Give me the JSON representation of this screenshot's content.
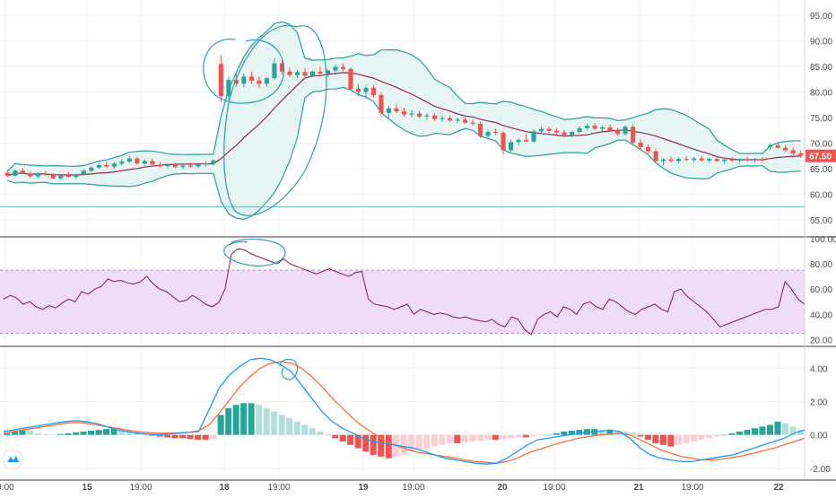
{
  "chart_data": [
    {
      "type": "candlestick",
      "panel": "price",
      "indicators": [
        "bollinger-bands",
        "moving-average"
      ],
      "y_ticks": [
        "95.00",
        "90.00",
        "85.00",
        "80.00",
        "75.00",
        "70.00",
        "65.00",
        "60.00",
        "55.00"
      ],
      "ylim": [
        52,
        98
      ],
      "last_price": "67.50",
      "horizontal_line": 57.5,
      "candles": [
        [
          64.2,
          64.8,
          63.4,
          63.6
        ],
        [
          63.6,
          64.9,
          63.5,
          64.6
        ],
        [
          64.6,
          65.1,
          63.9,
          64.0
        ],
        [
          64.0,
          64.5,
          63.2,
          63.5
        ],
        [
          63.5,
          64.3,
          63.1,
          64.1
        ],
        [
          64.1,
          64.6,
          63.6,
          63.8
        ],
        [
          63.8,
          64.1,
          62.9,
          63.1
        ],
        [
          63.1,
          63.9,
          62.8,
          63.7
        ],
        [
          63.7,
          64.4,
          63.3,
          63.4
        ],
        [
          63.4,
          64.0,
          63.0,
          63.8
        ],
        [
          63.8,
          64.9,
          63.7,
          64.6
        ],
        [
          64.6,
          65.5,
          64.2,
          65.2
        ],
        [
          65.2,
          66.0,
          64.9,
          65.7
        ],
        [
          65.7,
          66.4,
          65.1,
          65.4
        ],
        [
          65.4,
          66.2,
          65.0,
          66.0
        ],
        [
          66.0,
          66.8,
          65.6,
          66.4
        ],
        [
          66.4,
          67.4,
          66.1,
          67.0
        ],
        [
          67.0,
          67.3,
          65.8,
          66.0
        ],
        [
          66.0,
          66.8,
          65.5,
          66.5
        ],
        [
          66.5,
          67.0,
          65.6,
          65.8
        ],
        [
          65.8,
          66.3,
          65.2,
          65.5
        ],
        [
          65.5,
          66.0,
          65.0,
          65.7
        ],
        [
          65.7,
          66.1,
          65.1,
          65.3
        ],
        [
          65.3,
          65.9,
          64.9,
          65.6
        ],
        [
          65.6,
          66.2,
          65.2,
          65.4
        ],
        [
          65.4,
          66.0,
          65.1,
          65.8
        ],
        [
          65.8,
          66.4,
          65.4,
          66.0
        ],
        [
          66.0,
          66.8,
          65.6,
          66.6
        ],
        [
          85.5,
          87.2,
          78.0,
          79.2
        ],
        [
          79.2,
          83.0,
          78.5,
          82.4
        ],
        [
          82.4,
          84.1,
          81.0,
          81.6
        ],
        [
          81.6,
          83.6,
          80.9,
          83.0
        ],
        [
          83.0,
          84.0,
          81.6,
          82.2
        ],
        [
          82.2,
          83.1,
          80.8,
          81.6
        ],
        [
          81.6,
          82.9,
          81.0,
          82.7
        ],
        [
          82.7,
          86.6,
          82.4,
          85.6
        ],
        [
          85.6,
          86.2,
          83.4,
          84.0
        ],
        [
          84.0,
          84.8,
          82.9,
          83.3
        ],
        [
          83.3,
          84.3,
          82.8,
          83.9
        ],
        [
          83.9,
          84.6,
          83.0,
          83.2
        ],
        [
          83.2,
          84.2,
          82.9,
          84.0
        ],
        [
          84.0,
          84.9,
          83.3,
          83.6
        ],
        [
          83.6,
          84.5,
          83.1,
          84.2
        ],
        [
          84.2,
          85.4,
          83.6,
          84.9
        ],
        [
          84.9,
          85.6,
          84.1,
          84.5
        ],
        [
          84.5,
          84.8,
          80.2,
          80.6
        ],
        [
          80.6,
          81.6,
          79.2,
          80.0
        ],
        [
          80.0,
          81.3,
          78.6,
          80.8
        ],
        [
          80.8,
          81.4,
          78.9,
          79.4
        ],
        [
          79.4,
          79.9,
          75.2,
          75.9
        ],
        [
          75.9,
          77.3,
          74.9,
          76.8
        ],
        [
          76.8,
          77.6,
          75.9,
          76.2
        ],
        [
          76.2,
          76.9,
          75.2,
          75.6
        ],
        [
          75.6,
          76.4,
          75.0,
          75.8
        ],
        [
          75.8,
          76.3,
          74.9,
          75.2
        ],
        [
          75.2,
          75.9,
          74.6,
          75.4
        ],
        [
          75.4,
          75.8,
          74.4,
          74.7
        ],
        [
          74.7,
          75.3,
          74.1,
          74.9
        ],
        [
          74.9,
          75.4,
          74.2,
          74.4
        ],
        [
          74.4,
          75.0,
          73.9,
          74.6
        ],
        [
          74.6,
          75.1,
          73.8,
          74.0
        ],
        [
          74.0,
          74.6,
          73.4,
          73.8
        ],
        [
          73.8,
          74.2,
          71.0,
          71.4
        ],
        [
          71.4,
          72.6,
          70.8,
          72.2
        ],
        [
          72.2,
          72.8,
          71.6,
          72.0
        ],
        [
          72.0,
          72.4,
          67.8,
          68.6
        ],
        [
          68.6,
          70.6,
          68.2,
          70.2
        ],
        [
          70.2,
          71.0,
          69.6,
          70.6
        ],
        [
          70.6,
          71.8,
          70.2,
          70.3
        ],
        [
          70.3,
          72.7,
          70.0,
          72.3
        ],
        [
          72.3,
          73.2,
          71.8,
          72.8
        ],
        [
          72.8,
          73.3,
          72.0,
          72.4
        ],
        [
          72.4,
          72.9,
          71.8,
          72.1
        ],
        [
          72.1,
          72.6,
          71.2,
          71.6
        ],
        [
          71.6,
          72.4,
          71.2,
          72.2
        ],
        [
          72.2,
          73.3,
          71.9,
          72.9
        ],
        [
          72.9,
          73.8,
          72.5,
          73.4
        ],
        [
          73.4,
          73.9,
          72.6,
          72.8
        ],
        [
          72.8,
          73.4,
          72.3,
          73.1
        ],
        [
          73.1,
          73.6,
          72.2,
          72.5
        ],
        [
          72.5,
          73.0,
          71.4,
          71.8
        ],
        [
          71.8,
          73.5,
          71.5,
          73.2
        ],
        [
          73.2,
          73.6,
          69.6,
          70.1
        ],
        [
          70.1,
          70.8,
          68.6,
          69.2
        ],
        [
          69.2,
          69.7,
          67.9,
          68.4
        ],
        [
          68.4,
          68.9,
          66.1,
          66.5
        ],
        [
          66.5,
          67.1,
          65.6,
          66.8
        ],
        [
          66.8,
          67.4,
          66.2,
          66.5
        ],
        [
          66.5,
          67.2,
          66.1,
          66.9
        ],
        [
          66.9,
          67.5,
          66.4,
          66.7
        ],
        [
          66.7,
          67.3,
          66.2,
          67.0
        ],
        [
          67.0,
          67.5,
          66.3,
          66.6
        ],
        [
          66.6,
          67.2,
          66.1,
          66.9
        ],
        [
          66.9,
          67.4,
          66.3,
          66.5
        ],
        [
          66.5,
          67.1,
          66.0,
          66.8
        ],
        [
          66.8,
          67.3,
          66.2,
          66.6
        ],
        [
          66.6,
          67.0,
          66.1,
          66.9
        ],
        [
          66.9,
          67.4,
          66.4,
          66.7
        ],
        [
          66.7,
          67.1,
          66.2,
          66.9
        ],
        [
          66.9,
          67.3,
          66.3,
          66.6
        ],
        [
          69.2,
          70.0,
          68.6,
          69.6
        ],
        [
          69.6,
          70.2,
          68.9,
          69.1
        ],
        [
          69.1,
          69.7,
          68.2,
          68.6
        ],
        [
          68.6,
          69.1,
          67.7,
          68.0
        ],
        [
          68.0,
          68.6,
          67.1,
          67.5
        ]
      ]
    },
    {
      "type": "line",
      "panel": "rsi",
      "y_ticks": [
        "100.00",
        "80.00",
        "60.00",
        "40.00",
        "20.00"
      ],
      "ylim": [
        16,
        100
      ],
      "band": [
        25,
        75
      ],
      "values": [
        52,
        55,
        53,
        48,
        50,
        46,
        44,
        47,
        45,
        49,
        52,
        50,
        58,
        56,
        60,
        62,
        68,
        66,
        67,
        65,
        64,
        66,
        70,
        64,
        60,
        58,
        54,
        50,
        51,
        55,
        52,
        48,
        46,
        49,
        60,
        88,
        92,
        91,
        88,
        86,
        84,
        82,
        80,
        84,
        80,
        78,
        76,
        74,
        72,
        74,
        76,
        74,
        72,
        70,
        73,
        74,
        52,
        48,
        47,
        46,
        44,
        46,
        48,
        40,
        44,
        42,
        40,
        41,
        40,
        38,
        37,
        38,
        36,
        35,
        34,
        36,
        32,
        30,
        38,
        36,
        28,
        24,
        36,
        40,
        42,
        38,
        46,
        44,
        40,
        48,
        50,
        46,
        44,
        52,
        50,
        46,
        42,
        40,
        44,
        46,
        48,
        44,
        42,
        58,
        60,
        54,
        50,
        46,
        42,
        36,
        30,
        32,
        34,
        36,
        38,
        40,
        42,
        44,
        44,
        46,
        66,
        60,
        52,
        48
      ]
    },
    {
      "type": "bar+line",
      "panel": "macd",
      "y_ticks": [
        "4.00",
        "2.00",
        "0.00",
        "-2.00"
      ],
      "ylim": [
        -2.6,
        5.2
      ],
      "histogram": [
        0.1,
        0.2,
        0.3,
        0.25,
        0.1,
        0.05,
        0.0,
        0.05,
        0.1,
        0.15,
        0.2,
        0.25,
        0.3,
        0.35,
        0.4,
        0.35,
        0.3,
        0.2,
        0.05,
        -0.05,
        -0.1,
        -0.15,
        -0.2,
        -0.2,
        -0.25,
        -0.3,
        -0.3,
        -0.25,
        1.2,
        1.6,
        1.8,
        1.9,
        1.9,
        1.8,
        1.6,
        1.4,
        1.2,
        1.0,
        0.8,
        0.6,
        0.4,
        0.2,
        0.05,
        -0.2,
        -0.4,
        -0.6,
        -0.8,
        -1.0,
        -1.2,
        -1.3,
        -1.4,
        -1.3,
        -1.2,
        -1.0,
        -0.9,
        -0.8,
        -0.7,
        -0.6,
        -0.5,
        -0.5,
        -0.45,
        -0.4,
        -0.35,
        -0.3,
        -0.3,
        -0.25,
        -0.2,
        -0.15,
        -0.15,
        -0.1,
        -0.05,
        0.0,
        0.1,
        0.2,
        0.25,
        0.3,
        0.35,
        0.35,
        0.3,
        0.3,
        0.25,
        0.2,
        0.15,
        -0.1,
        -0.3,
        -0.5,
        -0.6,
        -0.7,
        -0.6,
        -0.5,
        -0.4,
        -0.3,
        -0.2,
        -0.1,
        0.0,
        0.1,
        0.2,
        0.3,
        0.4,
        0.5,
        0.6,
        0.8,
        0.7,
        0.5,
        0.3
      ],
      "macd": [
        0.2,
        0.3,
        0.4,
        0.5,
        0.6,
        0.7,
        0.8,
        0.85,
        0.8,
        0.7,
        0.5,
        0.3,
        0.2,
        0.1,
        0.05,
        0.0,
        0.05,
        0.1,
        0.15,
        0.2,
        1.5,
        2.8,
        3.6,
        4.1,
        4.5,
        4.6,
        4.5,
        4.2,
        3.8,
        3.0,
        2.2,
        1.4,
        0.8,
        0.4,
        0.1,
        -0.2,
        -0.4,
        -0.5,
        -0.6,
        -0.7,
        -0.8,
        -1.0,
        -1.2,
        -1.4,
        -1.5,
        -1.6,
        -1.7,
        -1.75,
        -1.7,
        -1.4,
        -1.0,
        -0.6,
        -0.3,
        -0.2,
        -0.1,
        0.0,
        0.1,
        0.15,
        0.2,
        0.3,
        0.2,
        -0.2,
        -0.8,
        -1.2,
        -1.4,
        -1.5,
        -1.6,
        -1.6,
        -1.5,
        -1.4,
        -1.3,
        -1.2,
        -1.0,
        -0.8,
        -0.6,
        -0.4,
        -0.2,
        0.1,
        0.3
      ],
      "signal": [
        0.1,
        0.2,
        0.3,
        0.4,
        0.5,
        0.6,
        0.7,
        0.75,
        0.7,
        0.6,
        0.5,
        0.4,
        0.3,
        0.2,
        0.15,
        0.1,
        0.1,
        0.12,
        0.15,
        0.25,
        0.6,
        1.3,
        2.1,
        2.9,
        3.5,
        4.0,
        4.3,
        4.4,
        4.3,
        4.0,
        3.5,
        2.9,
        2.2,
        1.6,
        1.0,
        0.5,
        0.1,
        -0.3,
        -0.6,
        -0.8,
        -1.0,
        -1.1,
        -1.2,
        -1.3,
        -1.4,
        -1.5,
        -1.6,
        -1.65,
        -1.7,
        -1.6,
        -1.4,
        -1.1,
        -0.9,
        -0.7,
        -0.5,
        -0.35,
        -0.2,
        -0.1,
        0.0,
        0.05,
        0.1,
        0.0,
        -0.3,
        -0.6,
        -0.9,
        -1.1,
        -1.3,
        -1.4,
        -1.5,
        -1.5,
        -1.45,
        -1.35,
        -1.25,
        -1.1,
        -0.95,
        -0.8,
        -0.6,
        -0.4,
        -0.2
      ]
    }
  ],
  "time_axis": {
    "labels": [
      "9:00",
      "15",
      "19:00",
      "18",
      "19:00",
      "19",
      "19:00",
      "20",
      "19:00",
      "21",
      "19:00",
      "22"
    ],
    "bold": [
      false,
      true,
      false,
      true,
      false,
      true,
      false,
      true,
      false,
      true,
      false,
      true
    ]
  },
  "colors": {
    "up": "#26a69a",
    "down": "#ef5350",
    "bb_fill": "#e6f4f2",
    "bb_line": "#2a9d9a",
    "ma": "#8e2a4f",
    "rsi_line": "#7b1b5a",
    "rsi_band": "#efdcfb",
    "macd_line": "#2196f3",
    "signal_line": "#ff6d3a",
    "hist_up_strong": "#26a69a",
    "hist_up_weak": "#b2dfdb",
    "hist_down_strong": "#ef5350",
    "hist_down_weak": "#ffcdd2",
    "annotation": "#2a9db0",
    "grid": "#f0f3f7",
    "last_price_bg": "#ef5350"
  }
}
